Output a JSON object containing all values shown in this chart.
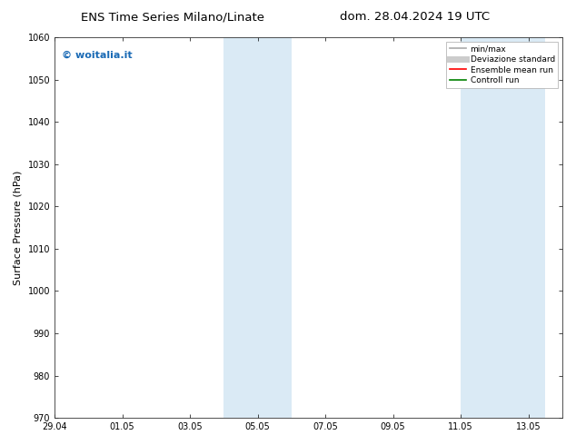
{
  "title_left": "ENS Time Series Milano/Linate",
  "title_right": "dom. 28.04.2024 19 UTC",
  "ylabel": "Surface Pressure (hPa)",
  "ylim": [
    970,
    1060
  ],
  "yticks": [
    970,
    980,
    990,
    1000,
    1010,
    1020,
    1030,
    1040,
    1050,
    1060
  ],
  "xlim": [
    0,
    15
  ],
  "xtick_labels": [
    "29.04",
    "01.05",
    "03.05",
    "05.05",
    "07.05",
    "09.05",
    "11.05",
    "13.05"
  ],
  "xtick_positions": [
    0,
    2,
    4,
    6,
    8,
    10,
    12,
    14
  ],
  "shaded_bands": [
    {
      "start": 5.0,
      "end": 7.0
    },
    {
      "start": 12.0,
      "end": 14.5
    }
  ],
  "shaded_color": "#daeaf5",
  "watermark_text": "© woitalia.it",
  "watermark_color": "#1a6ab5",
  "legend_items": [
    {
      "label": "min/max",
      "color": "#aaaaaa",
      "lw": 1.2
    },
    {
      "label": "Deviazione standard",
      "color": "#cccccc",
      "lw": 5
    },
    {
      "label": "Ensemble mean run",
      "color": "red",
      "lw": 1.2
    },
    {
      "label": "Controll run",
      "color": "green",
      "lw": 1.2
    }
  ],
  "bg_color": "#ffffff",
  "plot_bg_color": "#ffffff",
  "title_fontsize": 9.5,
  "tick_fontsize": 7,
  "ylabel_fontsize": 8,
  "watermark_fontsize": 8,
  "legend_fontsize": 6.5
}
